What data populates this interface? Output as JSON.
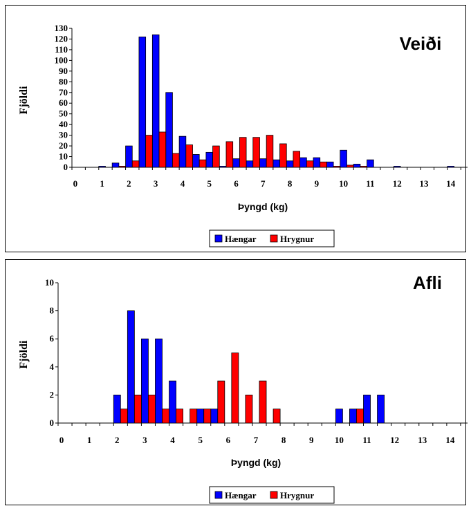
{
  "chart_data": [
    {
      "type": "bar",
      "title": "Veiði",
      "xlabel": "Þyngd (kg)",
      "ylabel": "Fjöldi",
      "ylim": [
        0,
        130
      ],
      "yticks": [
        0,
        10,
        20,
        30,
        40,
        50,
        60,
        70,
        80,
        90,
        100,
        110,
        120,
        130
      ],
      "xticks": [
        0,
        1,
        2,
        3,
        4,
        5,
        6,
        7,
        8,
        9,
        10,
        11,
        12,
        13,
        14
      ],
      "categories": [
        0,
        0.5,
        1,
        1.5,
        2,
        2.5,
        3,
        3.5,
        4,
        4.5,
        5,
        5.5,
        6,
        6.5,
        7,
        7.5,
        8,
        8.5,
        9,
        9.5,
        10,
        10.5,
        11,
        11.5,
        12,
        12.5,
        13,
        13.5,
        14,
        14.5
      ],
      "series": [
        {
          "name": "Hængar",
          "color": "#0000ff",
          "values": [
            0,
            0,
            1,
            4,
            20,
            122,
            124,
            70,
            29,
            12,
            14,
            1,
            8,
            6,
            8,
            7,
            6,
            9,
            9,
            5,
            16,
            3,
            7,
            0,
            1,
            0,
            0,
            0,
            1,
            0
          ]
        },
        {
          "name": "Hrygnur",
          "color": "#ff0000",
          "values": [
            0,
            0,
            0,
            1,
            6,
            30,
            33,
            13,
            21,
            7,
            20,
            24,
            28,
            28,
            30,
            22,
            15,
            6,
            5,
            1,
            2,
            1,
            0,
            0,
            0,
            0,
            0,
            0,
            0,
            0
          ]
        }
      ],
      "legend": "bottom-center",
      "grid": false
    },
    {
      "type": "bar",
      "title": "Afli",
      "xlabel": "Þyngd (kg)",
      "ylabel": "Fjöldi",
      "ylim": [
        0,
        10
      ],
      "yticks": [
        0,
        2,
        4,
        6,
        8,
        10
      ],
      "xticks": [
        0,
        1,
        2,
        3,
        4,
        5,
        6,
        7,
        8,
        9,
        10,
        11,
        12,
        13,
        14
      ],
      "categories": [
        0,
        0.5,
        1,
        1.5,
        2,
        2.5,
        3,
        3.5,
        4,
        4.5,
        5,
        5.5,
        6,
        6.5,
        7,
        7.5,
        8,
        8.5,
        9,
        9.5,
        10,
        10.5,
        11,
        11.5,
        12,
        12.5,
        13,
        13.5,
        14,
        14.5
      ],
      "series": [
        {
          "name": "Hængar",
          "color": "#0000ff",
          "values": [
            0,
            0,
            0,
            0,
            2,
            8,
            6,
            6,
            3,
            0,
            1,
            1,
            0,
            0,
            0,
            0,
            0,
            0,
            0,
            0,
            1,
            1,
            2,
            2,
            0,
            0,
            0,
            0,
            0,
            0
          ]
        },
        {
          "name": "Hrygnur",
          "color": "#ff0000",
          "values": [
            0,
            0,
            0,
            0,
            1,
            2,
            2,
            1,
            1,
            1,
            1,
            3,
            5,
            2,
            3,
            1,
            0,
            0,
            0,
            0,
            0,
            1,
            0,
            0,
            0,
            0,
            0,
            0,
            0,
            0
          ]
        }
      ],
      "legend": "bottom-center",
      "grid": false
    }
  ]
}
